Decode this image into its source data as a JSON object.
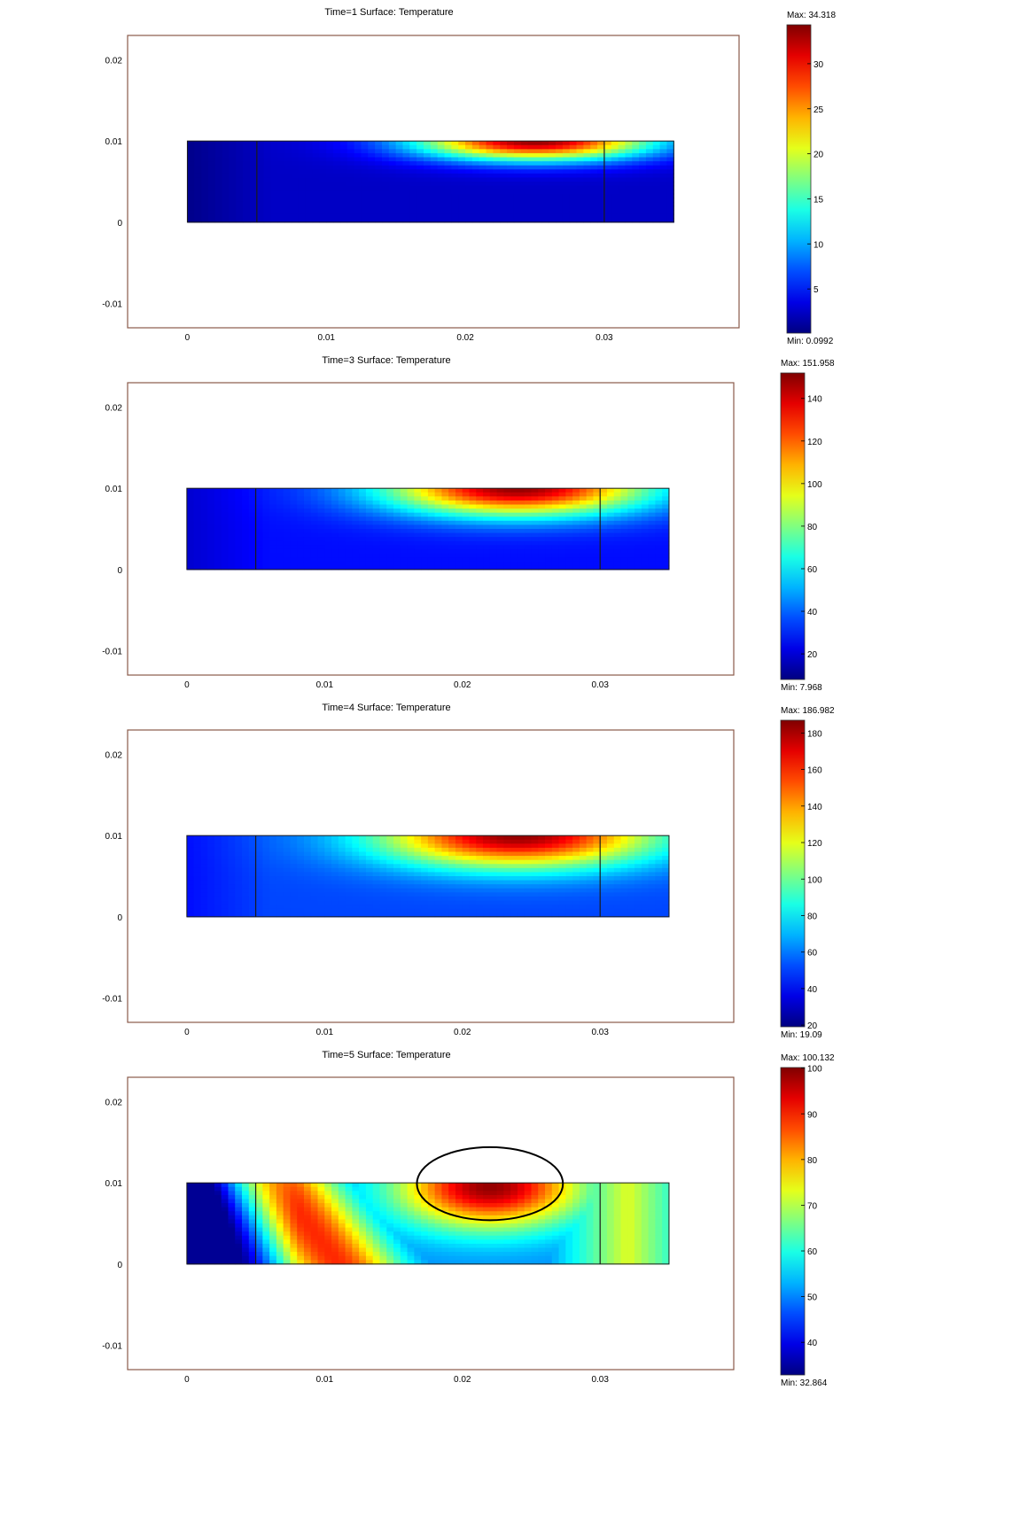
{
  "chart_data": [
    {
      "type": "heatmap",
      "title": "Time=1    Surface: Temperature",
      "time": 1,
      "quantity": "Temperature",
      "max_label": "Max: 34.318",
      "min_label": "Min: 0.0992",
      "max": 34.318,
      "min": 0.0992,
      "colorbar_ticks": [
        5,
        10,
        15,
        20,
        25,
        30
      ],
      "xlim": [
        -0.0043,
        0.0397
      ],
      "ylim": [
        -0.013,
        0.023
      ],
      "xticks": [
        0,
        0.01,
        0.02,
        0.03
      ],
      "yticks": [
        -0.01,
        0,
        0.01,
        0.02
      ],
      "domain": {
        "x": [
          0,
          0.035
        ],
        "y": [
          0,
          0.01
        ]
      },
      "subdomain_boundaries_x": [
        0.005,
        0.03
      ],
      "hot_spot": {
        "x": 0.025,
        "y": 0.01
      }
    },
    {
      "type": "heatmap",
      "title": "Time=3    Surface: Temperature",
      "time": 3,
      "quantity": "Temperature",
      "max_label": "Max: 151.958",
      "min_label": "Min: 7.968",
      "max": 151.958,
      "min": 7.968,
      "colorbar_ticks": [
        20,
        40,
        60,
        80,
        100,
        120,
        140
      ],
      "xlim": [
        -0.0043,
        0.0397
      ],
      "ylim": [
        -0.013,
        0.023
      ],
      "xticks": [
        0,
        0.01,
        0.02,
        0.03
      ],
      "yticks": [
        -0.01,
        0,
        0.01,
        0.02
      ],
      "domain": {
        "x": [
          0,
          0.035
        ],
        "y": [
          0,
          0.01
        ]
      },
      "subdomain_boundaries_x": [
        0.005,
        0.03
      ],
      "hot_spot": {
        "x": 0.024,
        "y": 0.01
      }
    },
    {
      "type": "heatmap",
      "title": "Time=4    Surface: Temperature",
      "time": 4,
      "quantity": "Temperature",
      "max_label": "Max: 186.982",
      "min_label": "Min: 19.09",
      "max": 186.982,
      "min": 19.09,
      "colorbar_ticks": [
        20,
        40,
        60,
        80,
        100,
        120,
        140,
        160,
        180
      ],
      "xlim": [
        -0.0043,
        0.0397
      ],
      "ylim": [
        -0.013,
        0.023
      ],
      "xticks": [
        0,
        0.01,
        0.02,
        0.03
      ],
      "yticks": [
        -0.01,
        0,
        0.01,
        0.02
      ],
      "domain": {
        "x": [
          0,
          0.035
        ],
        "y": [
          0,
          0.01
        ]
      },
      "subdomain_boundaries_x": [
        0.005,
        0.03
      ],
      "hot_spot": {
        "x": 0.024,
        "y": 0.01
      }
    },
    {
      "type": "heatmap",
      "title": "Time=5    Surface: Temperature",
      "time": 5,
      "quantity": "Temperature",
      "max_label": "Max: 100.132",
      "min_label": "Min: 32.864",
      "max": 100.132,
      "min": 32.864,
      "colorbar_ticks": [
        40,
        50,
        60,
        70,
        80,
        90,
        100
      ],
      "xlim": [
        -0.0043,
        0.0397
      ],
      "ylim": [
        -0.013,
        0.023
      ],
      "xticks": [
        0,
        0.01,
        0.02,
        0.03
      ],
      "yticks": [
        -0.01,
        0,
        0.01,
        0.02
      ],
      "domain": {
        "x": [
          0,
          0.035
        ],
        "y": [
          0,
          0.01
        ]
      },
      "subdomain_boundaries_x": [
        0.005,
        0.03
      ],
      "hot_spot": {
        "x": 0.022,
        "y": 0.007
      },
      "annotation": {
        "shape": "ellipse",
        "cx": 0.022,
        "cy": 0.0099,
        "rx": 0.0053,
        "ry": 0.0045
      }
    }
  ]
}
